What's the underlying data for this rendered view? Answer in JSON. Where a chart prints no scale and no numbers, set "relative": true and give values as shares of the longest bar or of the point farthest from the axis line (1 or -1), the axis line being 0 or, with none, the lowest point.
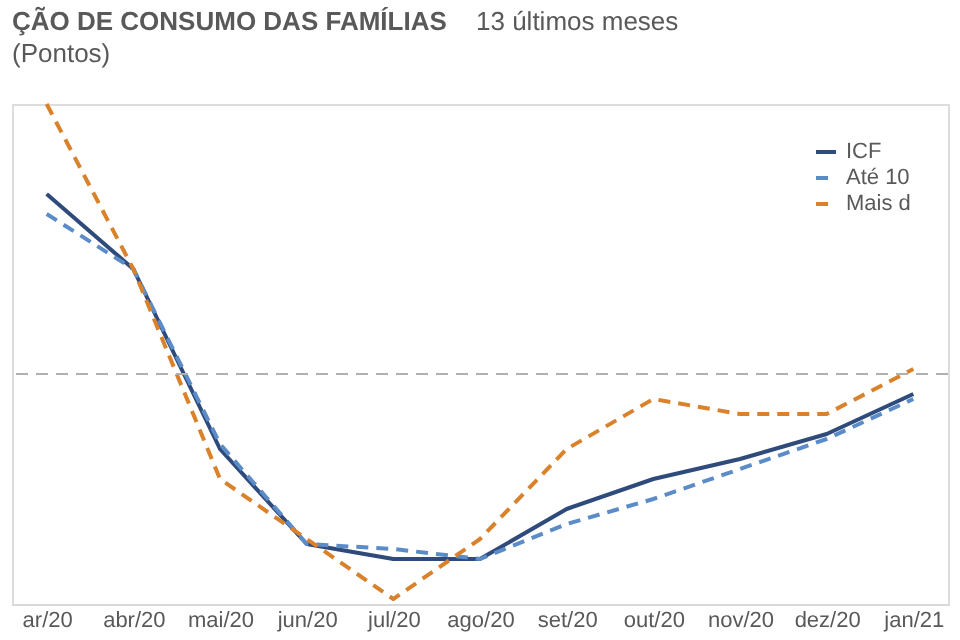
{
  "chart_data": {
    "type": "line",
    "title": "ÇÃO DE CONSUMO DAS FAMÍLIAS",
    "subtitle": "13 últimos meses",
    "ylabel": "(Pontos)",
    "categories": [
      "ar/20",
      "abr/20",
      "mai/20",
      "jun/20",
      "jul/20",
      "ago/20",
      "set/20",
      "out/20",
      "nov/20",
      "dez/20",
      "jan/21"
    ],
    "relative": true,
    "legend": "top right",
    "series": [
      {
        "name": "ICF",
        "color": "#2f4b7c",
        "line_style": "solid",
        "values": [
          0.82,
          0.67,
          0.31,
          0.12,
          0.09,
          0.09,
          0.19,
          0.25,
          0.29,
          0.34,
          0.42
        ]
      },
      {
        "name": "Até 10",
        "color": "#5b8cc8",
        "line_style": "dashed",
        "values": [
          0.78,
          0.67,
          0.32,
          0.12,
          0.11,
          0.09,
          0.16,
          0.21,
          0.27,
          0.33,
          0.41
        ]
      },
      {
        "name": "Mais d",
        "color": "#d9822b",
        "line_style": "dashed",
        "values": [
          1,
          0.67,
          0.25,
          0.13,
          0.01,
          0.13,
          0.31,
          0.41,
          0.38,
          0.38,
          0.47
        ]
      }
    ],
    "ref_lines": [
      {
        "axis": "y",
        "value": 0.46,
        "color": "#b0b0b0",
        "line_style": "dashed"
      }
    ]
  }
}
